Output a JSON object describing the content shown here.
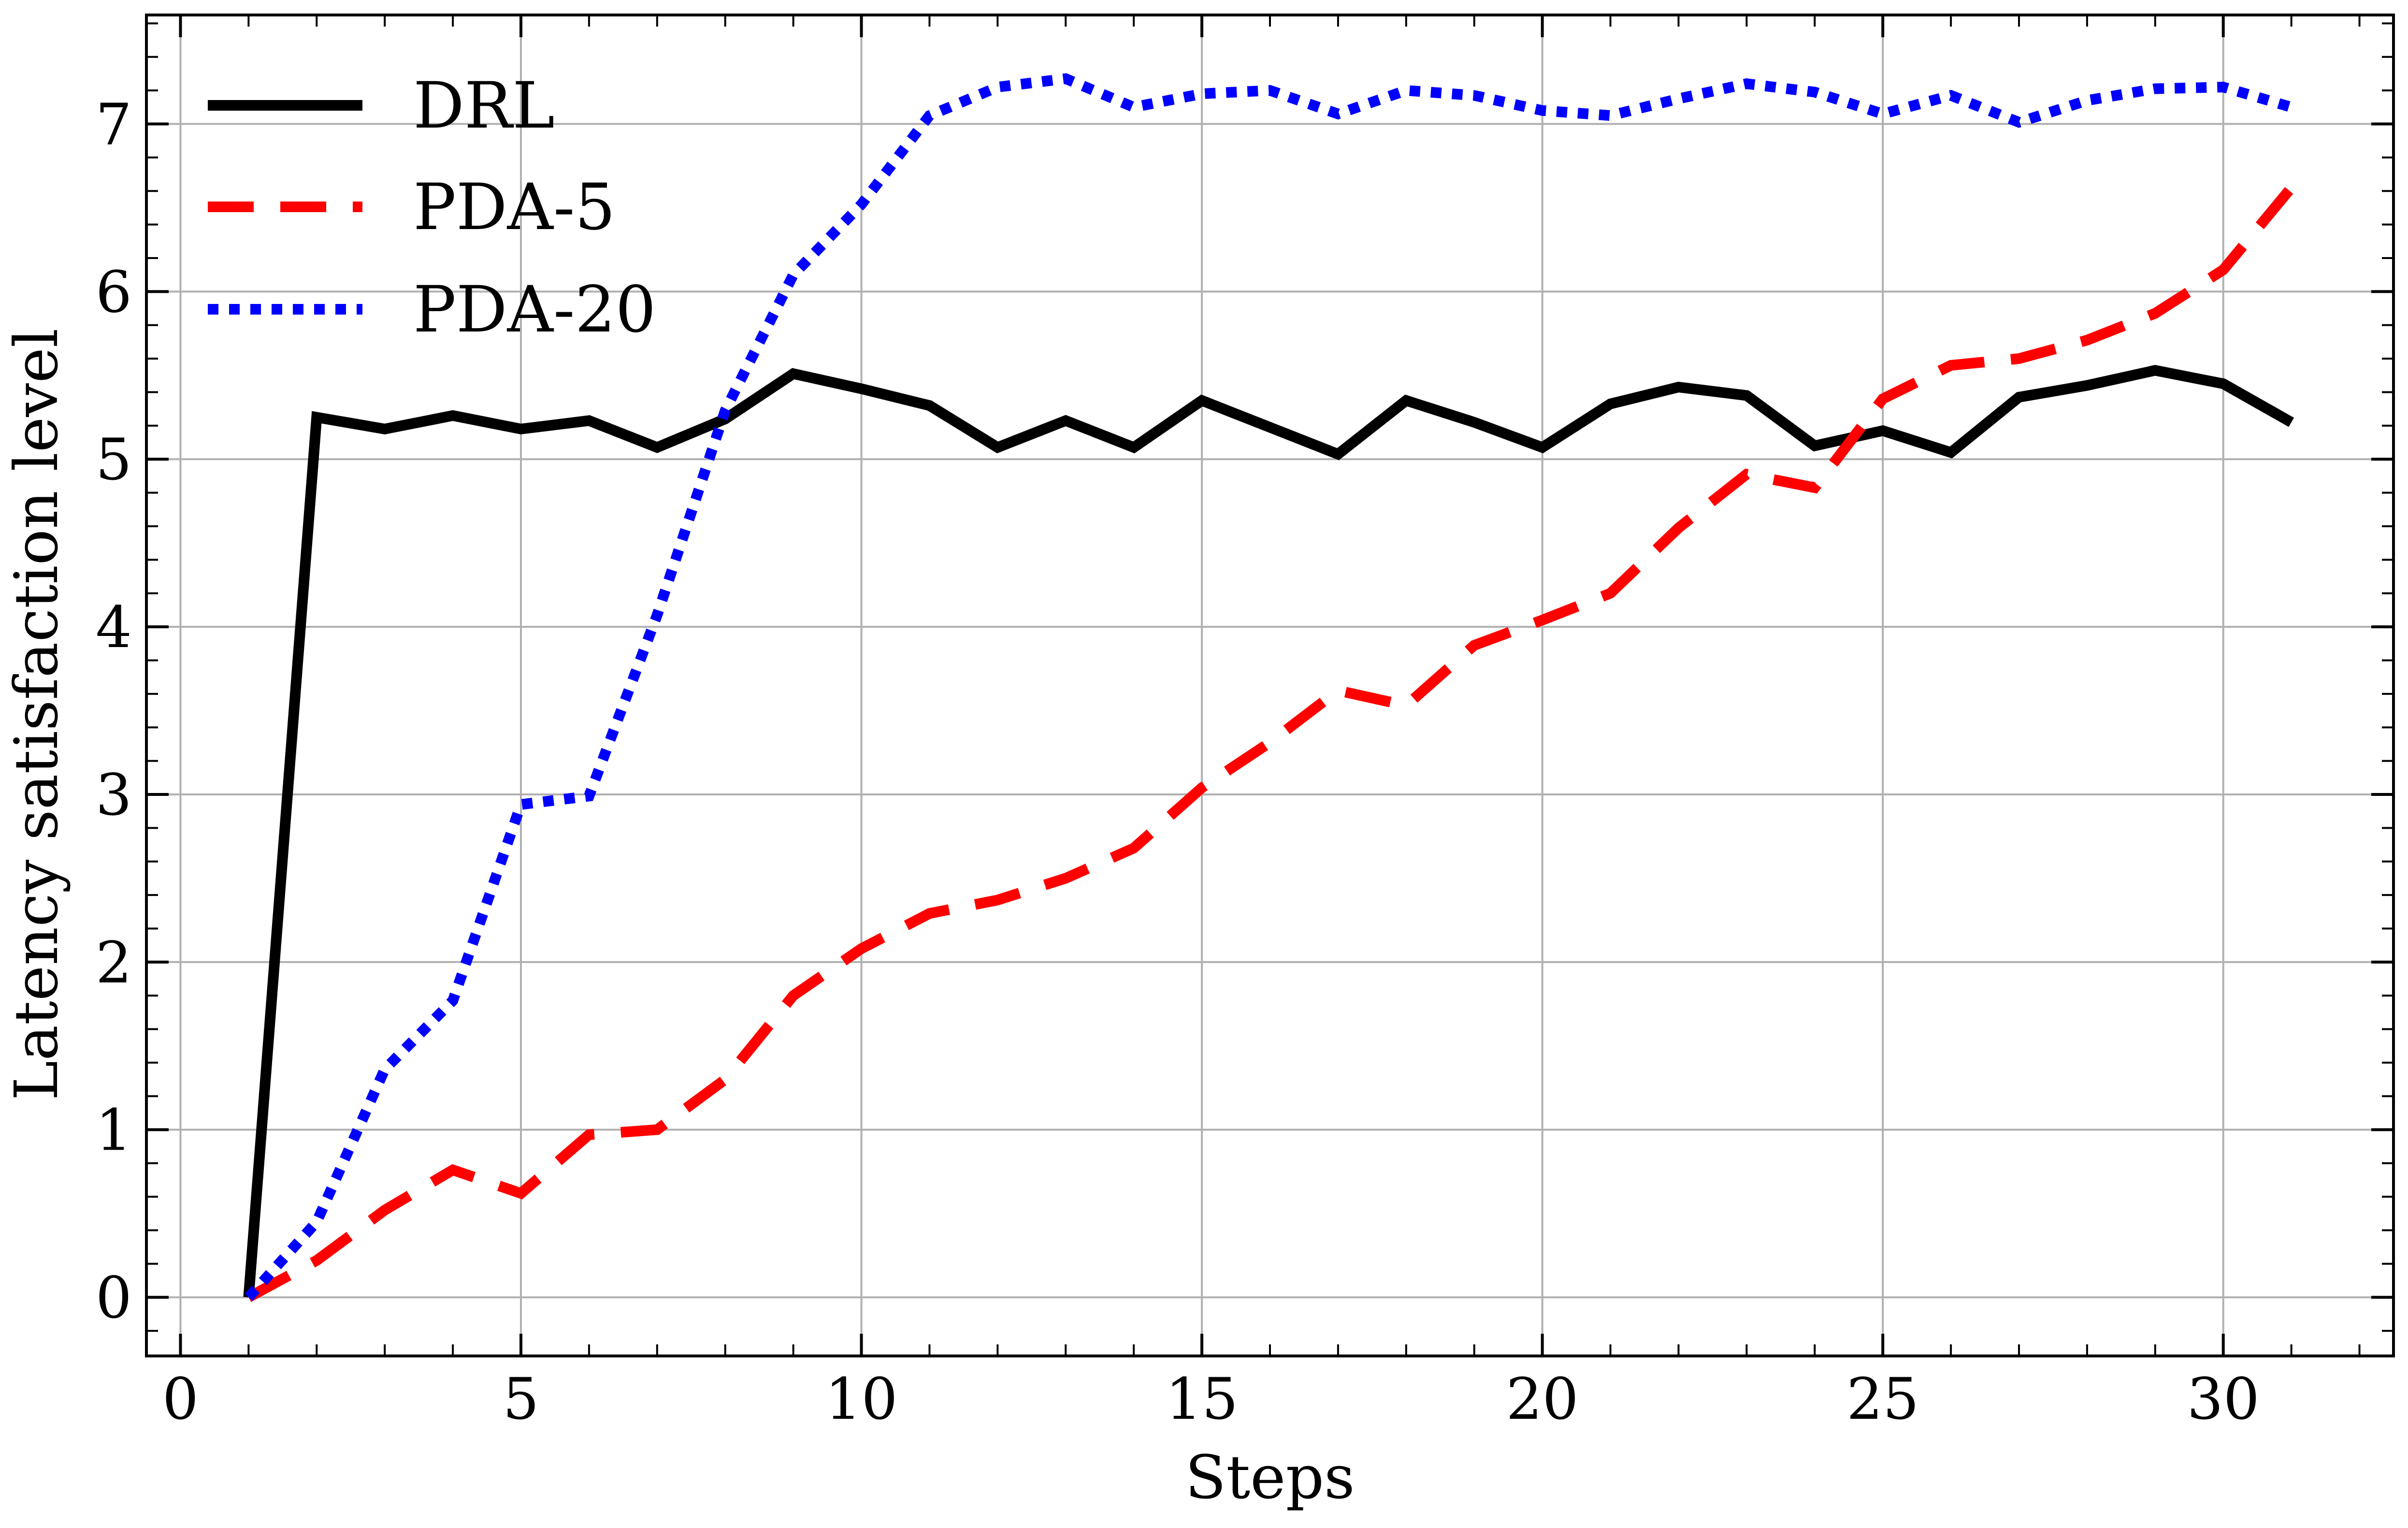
{
  "chart_data": {
    "type": "line",
    "title": "",
    "xlabel": "Steps",
    "ylabel": "Latency satisfaction level",
    "xlim": [
      -0.5,
      32.5
    ],
    "ylim": [
      -0.35,
      7.65
    ],
    "x_ticks": [
      0,
      5,
      10,
      15,
      20,
      25,
      30
    ],
    "y_ticks": [
      0,
      1,
      2,
      3,
      4,
      5,
      6,
      7
    ],
    "x_tick_labels": [
      "0",
      "5",
      "10",
      "15",
      "20",
      "25",
      "30"
    ],
    "y_tick_labels": [
      "0",
      "1",
      "2",
      "3",
      "4",
      "5",
      "6",
      "7"
    ],
    "grid": true,
    "legend_position": "top-left",
    "x": [
      1,
      2,
      3,
      4,
      5,
      6,
      7,
      8,
      9,
      10,
      11,
      12,
      13,
      14,
      15,
      16,
      17,
      18,
      19,
      20,
      21,
      22,
      23,
      24,
      25,
      26,
      27,
      28,
      29,
      30,
      31
    ],
    "series": [
      {
        "name": "DRL",
        "color": "#000000",
        "style": "solid",
        "values": [
          0.0,
          5.25,
          5.18,
          5.26,
          5.18,
          5.23,
          5.07,
          5.24,
          5.51,
          5.42,
          5.32,
          5.07,
          5.23,
          5.07,
          5.35,
          5.19,
          5.03,
          5.35,
          5.22,
          5.07,
          5.33,
          5.43,
          5.38,
          5.08,
          5.17,
          5.04,
          5.37,
          5.44,
          5.53,
          5.45,
          5.22
        ]
      },
      {
        "name": "PDA-5",
        "color": "#ff0000",
        "style": "dashed",
        "values": [
          0.0,
          0.22,
          0.52,
          0.76,
          0.62,
          0.97,
          1.0,
          1.3,
          1.8,
          2.08,
          2.29,
          2.37,
          2.5,
          2.68,
          3.04,
          3.31,
          3.62,
          3.53,
          3.89,
          4.04,
          4.2,
          4.59,
          4.91,
          4.83,
          5.36,
          5.56,
          5.6,
          5.71,
          5.87,
          6.13,
          6.62
        ]
      },
      {
        "name": "PDA-20",
        "color": "#0000ff",
        "style": "dotted",
        "values": [
          0.0,
          0.45,
          1.36,
          1.77,
          2.94,
          2.99,
          4.07,
          5.29,
          6.1,
          6.52,
          7.05,
          7.22,
          7.27,
          7.1,
          7.18,
          7.2,
          7.06,
          7.2,
          7.17,
          7.08,
          7.05,
          7.15,
          7.24,
          7.19,
          7.06,
          7.17,
          7.01,
          7.14,
          7.21,
          7.22,
          7.1
        ]
      }
    ]
  }
}
